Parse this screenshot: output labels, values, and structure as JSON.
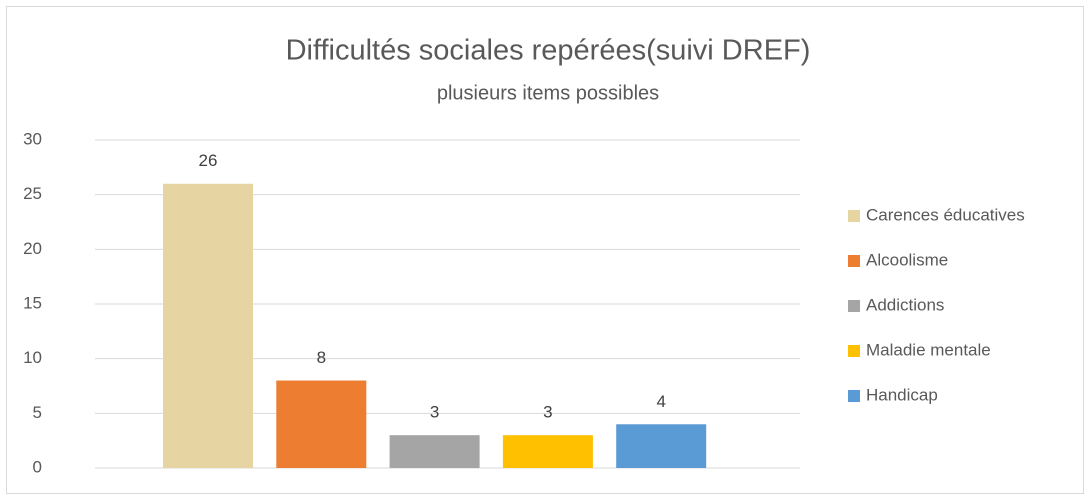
{
  "chart_data": {
    "type": "bar",
    "title": "Difficultés sociales repérées(suivi DREF)",
    "subtitle": "plusieurs items possibles",
    "series": [
      {
        "name": "Carences éducatives",
        "color": "#e6d4a3",
        "values": [
          26
        ]
      },
      {
        "name": "Alcoolisme",
        "color": "#ed7d31",
        "values": [
          8
        ]
      },
      {
        "name": "Addictions",
        "color": "#a5a5a5",
        "values": [
          3
        ]
      },
      {
        "name": "Maladie mentale",
        "color": "#ffc000",
        "values": [
          3
        ]
      },
      {
        "name": "Handicap",
        "color": "#5b9bd5",
        "values": [
          4
        ]
      }
    ],
    "ylim": [
      0,
      30
    ],
    "yticks": [
      0,
      5,
      10,
      15,
      20,
      25,
      30
    ],
    "grid": true,
    "legend": "right"
  }
}
